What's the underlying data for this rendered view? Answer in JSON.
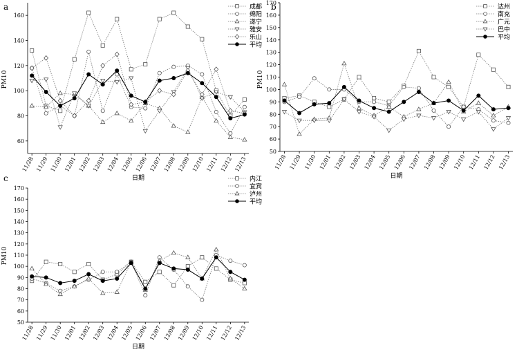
{
  "chart_data": [
    {
      "panel": "a",
      "type": "line",
      "ylabel": "PM10",
      "xlabel": "日期",
      "ylim": [
        50,
        170
      ],
      "yticks": [
        60,
        80,
        100,
        120,
        140,
        160
      ],
      "categories": [
        "11/28",
        "11/29",
        "11/30",
        "12/01",
        "12/02",
        "12/03",
        "12/04",
        "12/05",
        "12/06",
        "12/07",
        "12/08",
        "12/09",
        "12/10",
        "12/11",
        "12/12",
        "12/13"
      ],
      "series": [
        {
          "name": "成都",
          "marker": "square",
          "values": [
            132,
            88,
            84,
            125,
            162,
            136,
            157,
            117,
            121,
            157,
            162,
            151,
            141,
            100,
            80,
            93
          ]
        },
        {
          "name": "绵阳",
          "marker": "circle",
          "values": [
            118,
            82,
            88,
            80,
            131,
            84,
            113,
            87,
            86,
            114,
            119,
            120,
            113,
            83,
            66,
            87
          ]
        },
        {
          "name": "遂宁",
          "marker": "triangle-up",
          "values": [
            88,
            87,
            98,
            97,
            88,
            75,
            82,
            76,
            90,
            86,
            72,
            67,
            95,
            76,
            63,
            61
          ]
        },
        {
          "name": "雅安",
          "marker": "triangle-down",
          "values": [
            108,
            109,
            71,
            98,
            88,
            108,
            107,
            110,
            68,
            84,
            99,
            118,
            94,
            99,
            95,
            83
          ]
        },
        {
          "name": "乐山",
          "marker": "diamond",
          "values": [
            118,
            126,
            92,
            80,
            92,
            120,
            129,
            89,
            91,
            100,
            97,
            116,
            97,
            117,
            84,
            82
          ]
        },
        {
          "name": "平均",
          "marker": "filled-circle",
          "values": [
            112,
            99,
            88,
            94,
            113,
            105,
            116,
            96,
            91,
            108,
            110,
            114,
            106,
            95,
            78,
            81
          ]
        }
      ]
    },
    {
      "panel": "b",
      "type": "line",
      "ylabel": "PM10",
      "xlabel": "日期",
      "ylim": [
        50,
        170
      ],
      "yticks": [
        50,
        60,
        70,
        80,
        90,
        100,
        110,
        120,
        130,
        140,
        150,
        160,
        170
      ],
      "categories": [
        "11/28",
        "11/29",
        "11/30",
        "12/01",
        "12/02",
        "12/03",
        "12/04",
        "12/05",
        "12/06",
        "12/07",
        "12/08",
        "12/09",
        "12/10",
        "12/11",
        "12/12",
        "12/13"
      ],
      "series": [
        {
          "name": "达州",
          "marker": "square",
          "values": [
            93,
            95,
            90,
            86,
            92,
            110,
            93,
            90,
            103,
            131,
            110,
            102,
            86,
            128,
            116,
            102
          ]
        },
        {
          "name": "南充",
          "marker": "circle",
          "values": [
            90,
            94,
            109,
            100,
            100,
            90,
            90,
            87,
            102,
            101,
            83,
            70,
            86,
            84,
            75,
            73
          ]
        },
        {
          "name": "广元",
          "marker": "triangle-up",
          "values": [
            104,
            64,
            76,
            77,
            121,
            85,
            79,
            86,
            78,
            84,
            89,
            106,
            82,
            89,
            79,
            86
          ]
        },
        {
          "name": "巴中",
          "marker": "triangle-down",
          "values": [
            82,
            75,
            75,
            75,
            92,
            82,
            78,
            67,
            76,
            79,
            77,
            82,
            76,
            82,
            68,
            77
          ]
        },
        {
          "name": "平均",
          "marker": "filled-circle",
          "values": [
            91,
            81,
            88,
            89,
            102,
            91,
            85,
            82,
            90,
            98,
            89,
            91,
            83,
            95,
            84,
            85
          ]
        }
      ]
    },
    {
      "panel": "c",
      "type": "line",
      "ylabel": "PM10",
      "xlabel": "日期",
      "ylim": [
        50,
        170
      ],
      "yticks": [
        50,
        60,
        70,
        80,
        90,
        100,
        110,
        120,
        130,
        140,
        150,
        160,
        170
      ],
      "categories": [
        "11/28",
        "11/29",
        "11/30",
        "12/01",
        "12/02",
        "12/03",
        "12/04",
        "12/05",
        "12/06",
        "12/07",
        "12/08",
        "12/09",
        "12/10",
        "12/11",
        "12/12",
        "12/13"
      ],
      "series": [
        {
          "name": "内江",
          "marker": "square",
          "values": [
            87,
            104,
            102,
            95,
            102,
            88,
            93,
            104,
            86,
            95,
            83,
            100,
            108,
            98,
            88,
            85
          ]
        },
        {
          "name": "宜宾",
          "marker": "circle",
          "values": [
            89,
            85,
            78,
            82,
            88,
            95,
            95,
            104,
            74,
            108,
            97,
            82,
            70,
            110,
            105,
            101
          ]
        },
        {
          "name": "泸州",
          "marker": "triangle-up",
          "values": [
            98,
            84,
            75,
            82,
            89,
            76,
            77,
            104,
            79,
            105,
            112,
            108,
            89,
            115,
            89,
            80
          ]
        },
        {
          "name": "平均",
          "marker": "filled-circle",
          "values": [
            91,
            90,
            85,
            87,
            93,
            87,
            89,
            103,
            80,
            103,
            98,
            97,
            89,
            108,
            95,
            88
          ]
        }
      ]
    }
  ]
}
